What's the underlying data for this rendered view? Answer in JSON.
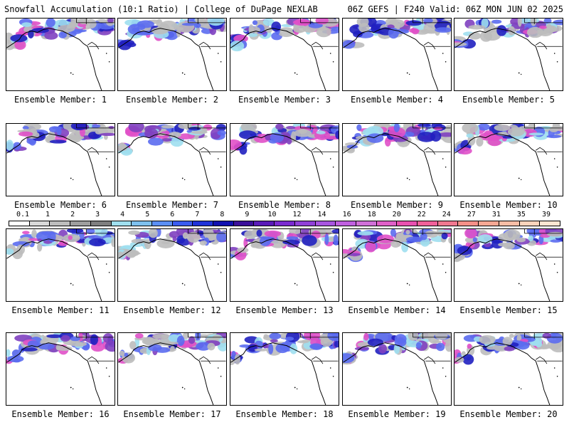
{
  "header": {
    "left": "Snowfall Accumulation (10:1 Ratio) | College of DuPage NEXLAB",
    "right": "06Z GEFS | F240 Valid: 06Z MON JUN 02 2025"
  },
  "caption_prefix": "Ensemble Member: ",
  "members": [
    {
      "label": "Ensemble Member: 1"
    },
    {
      "label": "Ensemble Member: 2"
    },
    {
      "label": "Ensemble Member: 3"
    },
    {
      "label": "Ensemble Member: 4"
    },
    {
      "label": "Ensemble Member: 5"
    },
    {
      "label": "Ensemble Member: 6"
    },
    {
      "label": "Ensemble Member: 7"
    },
    {
      "label": "Ensemble Member: 8"
    },
    {
      "label": "Ensemble Member: 9"
    },
    {
      "label": "Ensemble Member: 10"
    },
    {
      "label": "Ensemble Member: 11"
    },
    {
      "label": "Ensemble Member: 12"
    },
    {
      "label": "Ensemble Member: 13"
    },
    {
      "label": "Ensemble Member: 14"
    },
    {
      "label": "Ensemble Member: 15"
    },
    {
      "label": "Ensemble Member: 16"
    },
    {
      "label": "Ensemble Member: 17"
    },
    {
      "label": "Ensemble Member: 18"
    },
    {
      "label": "Ensemble Member: 19"
    },
    {
      "label": "Ensemble Member: 20"
    }
  ],
  "legend": {
    "ticks": [
      "0.1",
      "1",
      "2",
      "3",
      "4",
      "5",
      "6",
      "7",
      "8",
      "9",
      "10",
      "12",
      "14",
      "16",
      "18",
      "20",
      "22",
      "24",
      "27",
      "31",
      "35",
      "39"
    ],
    "colors": [
      "#ffffff",
      "#d9d9d9",
      "#bdbdbd",
      "#9e9e9e",
      "#7f7f7f",
      "#9fdfef",
      "#7ec0ee",
      "#5b8ff5",
      "#3a5cf0",
      "#1f33d9",
      "#1010b0",
      "#3b0f9a",
      "#5a1ab8",
      "#7a2ad0",
      "#9040d8",
      "#a855e0",
      "#c060e0",
      "#d070d8",
      "#e060c8",
      "#e850b0",
      "#f0609a",
      "#f07890",
      "#f49088",
      "#f6a894",
      "#f8bea6",
      "#fbd4bc",
      "#fde6d2"
    ]
  },
  "colors": {
    "land": "#ffffff",
    "coast": "#000000",
    "snow_light": "#bdbdbd",
    "snow_blue": "#5b6cf0",
    "snow_dark": "#2020c0",
    "snow_purple": "#8040c0",
    "snow_pink": "#e050c8",
    "snow_cyan": "#9fdfef"
  }
}
